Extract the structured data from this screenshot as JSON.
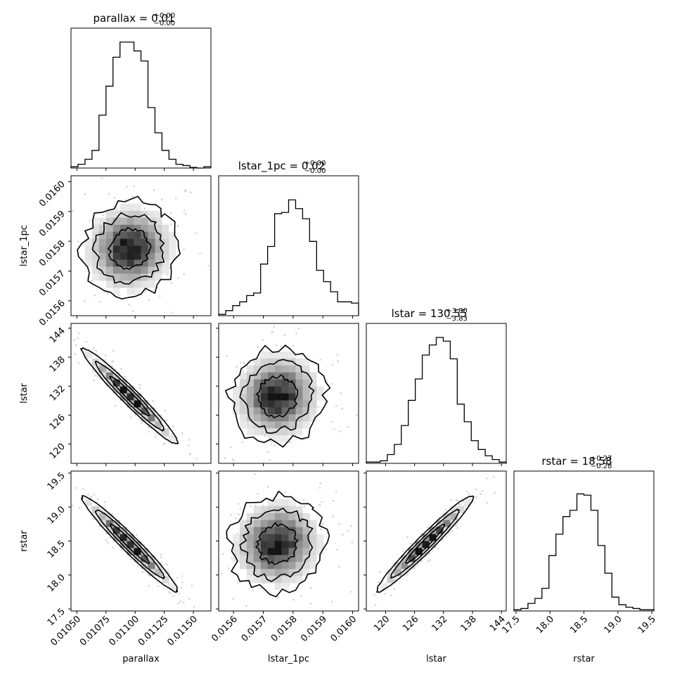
{
  "chart_data": {
    "type": "corner",
    "params": [
      {
        "key": "parallax",
        "label": "parallax",
        "range": [
          0.01045,
          0.01165
        ],
        "ticks": [
          "0.01050",
          "0.01075",
          "0.01100",
          "0.01125",
          "0.01150"
        ],
        "title": {
          "main": "parallax = 0.01",
          "plus": "+0.00",
          "minus": "−0.00"
        }
      },
      {
        "key": "lstar_1pc",
        "label": "lstar_1pc",
        "range": [
          0.01555,
          0.01602
        ],
        "ticks": [
          "0.0156",
          "0.0157",
          "0.0158",
          "0.0159",
          "0.0160"
        ],
        "title": {
          "main": "lstar_1pc = 0.02",
          "plus": "+0.00",
          "minus": "−0.00"
        }
      },
      {
        "key": "lstar",
        "label": "lstar",
        "range": [
          116,
          145
        ],
        "ticks": [
          "120",
          "126",
          "132",
          "138",
          "144"
        ],
        "title": {
          "main": "lstar = 130.55",
          "plus": "+3.80",
          "minus": "−3.83"
        }
      },
      {
        "key": "rstar",
        "label": "rstar",
        "range": [
          17.47,
          19.53
        ],
        "ticks": [
          "17.5",
          "18.0",
          "18.5",
          "19.0",
          "19.5"
        ],
        "title": {
          "main": "rstar = 18.58",
          "plus": "+0.27",
          "minus": "−0.28"
        }
      }
    ],
    "tick_values": [
      [
        0.0105,
        0.01075,
        0.011,
        0.01125,
        0.0115
      ],
      [
        0.0156,
        0.0157,
        0.0158,
        0.0159,
        0.016
      ],
      [
        120,
        126,
        132,
        138,
        144
      ],
      [
        17.5,
        18.0,
        18.5,
        19.0,
        19.5
      ]
    ],
    "histograms": [
      [
        1,
        3,
        7,
        14,
        42,
        65,
        88,
        100,
        100,
        93,
        85,
        48,
        28,
        14,
        7,
        3,
        2,
        0.5,
        0,
        1
      ],
      [
        1,
        4,
        8,
        11,
        16,
        18,
        41,
        55,
        81,
        82,
        92,
        85,
        77,
        59,
        36,
        27,
        19,
        11,
        11,
        10
      ],
      [
        1,
        1,
        2,
        7,
        15,
        30,
        50,
        67,
        86,
        94,
        100,
        97,
        83,
        47,
        33,
        18,
        11,
        6,
        3,
        1
      ],
      [
        1,
        2,
        6,
        10,
        18,
        44,
        61,
        75,
        80,
        93,
        92,
        80,
        52,
        30,
        11,
        5,
        3,
        2,
        1,
        1
      ]
    ],
    "correlations": {
      "1-0": 0.05,
      "2-0": -0.97,
      "2-1": 0.05,
      "3-0": -0.97,
      "3-1": 0.05,
      "3-2": 0.97
    },
    "grid": false,
    "colors": {
      "line": "#000000",
      "background": "#ffffff"
    }
  }
}
